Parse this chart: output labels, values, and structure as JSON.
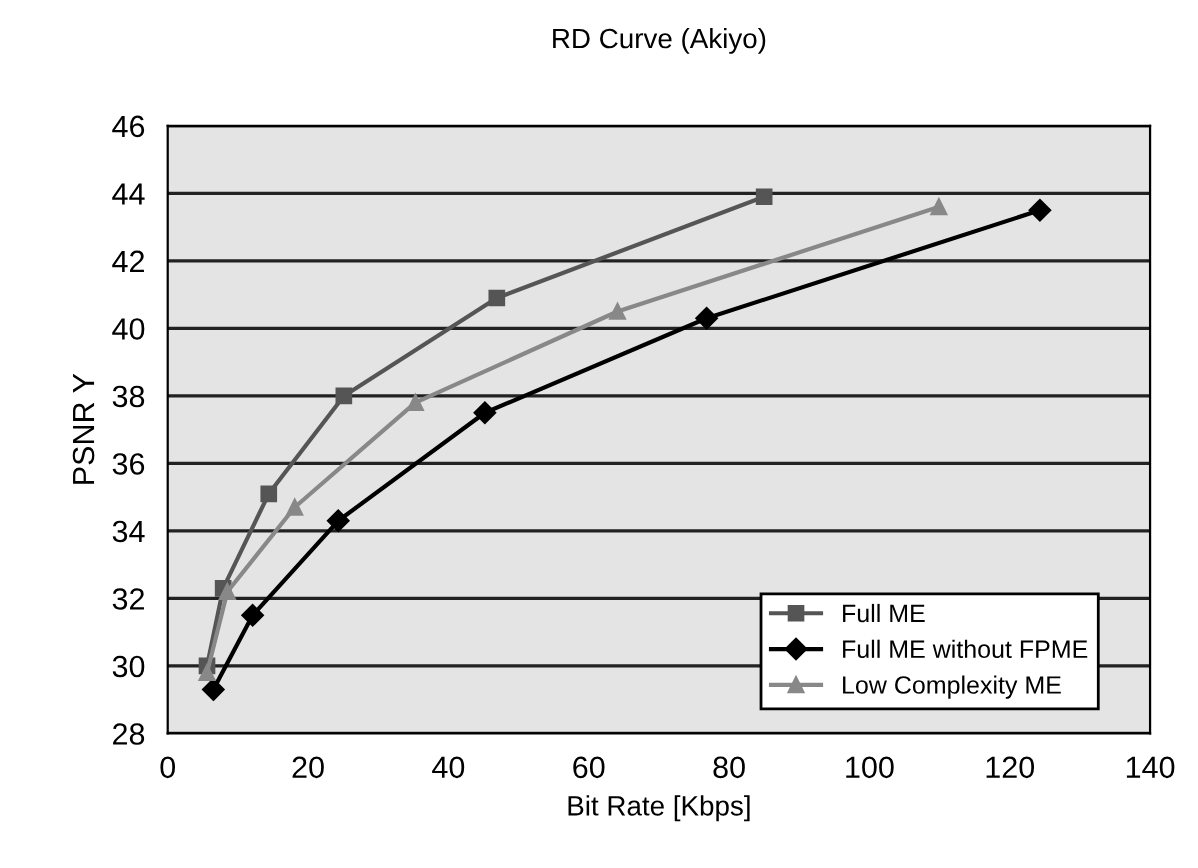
{
  "chart_data": {
    "type": "line",
    "title": "RD Curve (Akiyo)",
    "xlabel": "Bit Rate [Kbps]",
    "ylabel": "PSNR Y",
    "xlim": [
      0,
      140
    ],
    "xticks": [
      0,
      20,
      40,
      60,
      80,
      100,
      120,
      140
    ],
    "ylim": [
      28,
      46
    ],
    "yticks": [
      28,
      30,
      32,
      34,
      36,
      38,
      40,
      42,
      44,
      46
    ],
    "grid": "y",
    "legend": "bottom right",
    "series": [
      {
        "name": "Full ME",
        "color": "#555555",
        "marker": "square",
        "x": [
          5.6,
          7.9,
          14.4,
          25.1,
          46.9,
          85
        ],
        "values": [
          30.0,
          32.3,
          35.1,
          38.0,
          40.9,
          43.9
        ]
      },
      {
        "name": "Full ME without FPME",
        "color": "#000000",
        "marker": "diamond",
        "x": [
          6.5,
          12.1,
          24.3,
          45.2,
          76.8,
          124.3
        ],
        "values": [
          29.3,
          31.5,
          34.3,
          37.5,
          40.3,
          43.5
        ]
      },
      {
        "name": "Low Complexity ME",
        "color": "#888888",
        "marker": "triangle",
        "x": [
          5.6,
          8.5,
          18.1,
          35.3,
          64.1,
          109.9
        ],
        "values": [
          29.8,
          32.2,
          34.7,
          37.8,
          40.5,
          43.6
        ]
      }
    ]
  }
}
